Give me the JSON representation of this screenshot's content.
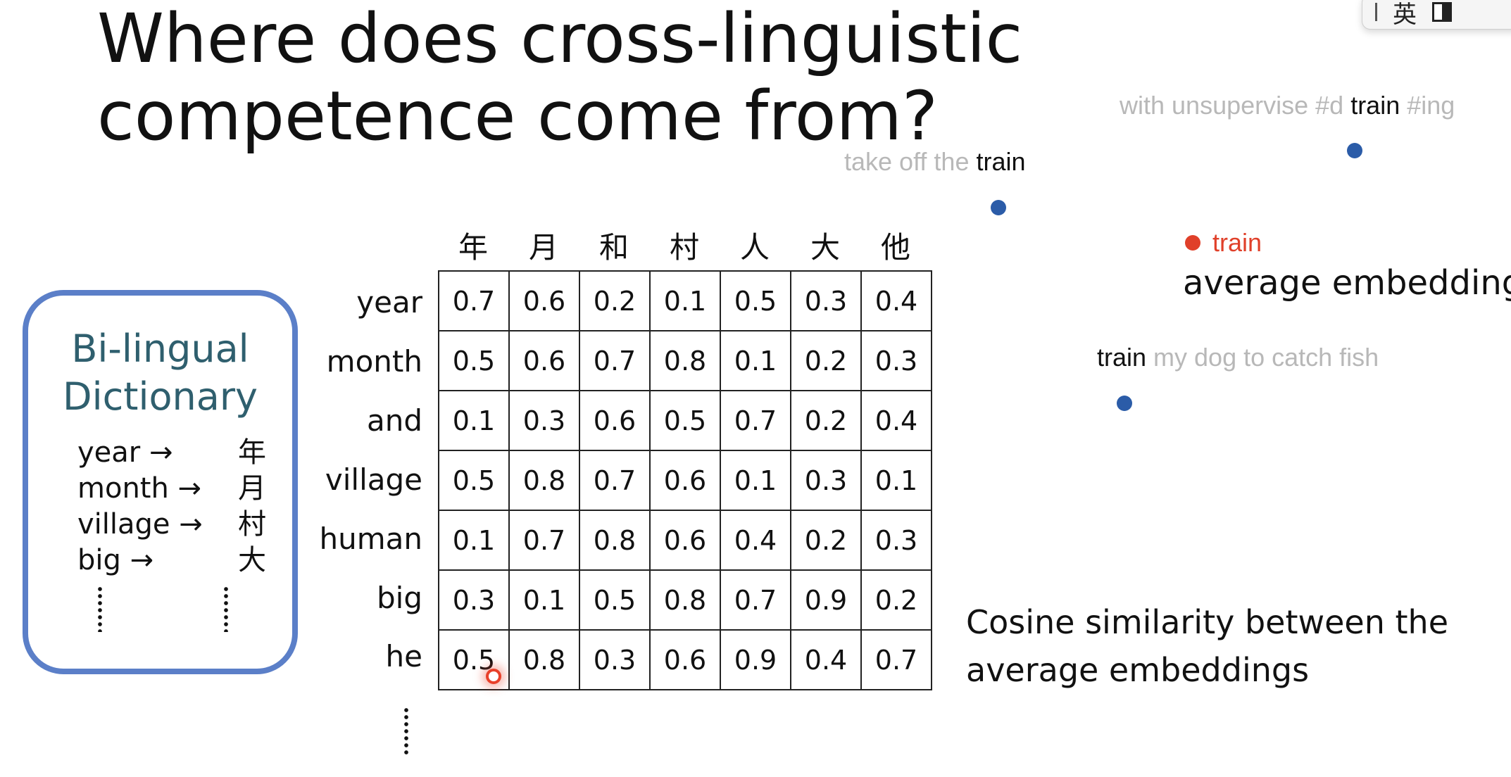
{
  "slide": {
    "title": "Where does cross-linguistic competence come from?"
  },
  "ime_toolbar": {
    "lang_label": "英"
  },
  "dictionary": {
    "title": "Bi-lingual Dictionary",
    "entries": [
      {
        "en": "year →",
        "zh": "年"
      },
      {
        "en": "month →",
        "zh": "月"
      },
      {
        "en": "village →",
        "zh": "村"
      },
      {
        "en": "big →",
        "zh": "大"
      }
    ]
  },
  "matrix": {
    "columns": [
      "年",
      "月",
      "和",
      "村",
      "人",
      "大",
      "他"
    ],
    "rows": [
      "year",
      "month",
      "and",
      "village",
      "human",
      "big",
      "he"
    ],
    "values": [
      [
        "0.7",
        "0.6",
        "0.2",
        "0.1",
        "0.5",
        "0.3",
        "0.4"
      ],
      [
        "0.5",
        "0.6",
        "0.7",
        "0.8",
        "0.1",
        "0.2",
        "0.3"
      ],
      [
        "0.1",
        "0.3",
        "0.6",
        "0.5",
        "0.7",
        "0.2",
        "0.4"
      ],
      [
        "0.5",
        "0.8",
        "0.7",
        "0.6",
        "0.1",
        "0.3",
        "0.1"
      ],
      [
        "0.1",
        "0.7",
        "0.8",
        "0.6",
        "0.4",
        "0.2",
        "0.3"
      ],
      [
        "0.3",
        "0.1",
        "0.5",
        "0.8",
        "0.7",
        "0.9",
        "0.2"
      ],
      [
        "0.5",
        "0.8",
        "0.3",
        "0.6",
        "0.9",
        "0.4",
        "0.7"
      ]
    ]
  },
  "caption": "Cosine similarity between the average embeddings",
  "embeddings": {
    "context1": {
      "pre": "with unsupervise #d ",
      "word": "train",
      "post": " #ing"
    },
    "context2": {
      "pre": "take off the ",
      "word": "train"
    },
    "context3": {
      "word": "train",
      "post": " my dog to catch fish"
    },
    "average_point_label": "train",
    "average_label": "average embeddings"
  },
  "colors": {
    "dict_border": "#5b7fc8",
    "dict_title": "#2f5f6e",
    "point_blue": "#2b5ca8",
    "point_red": "#e0402a"
  }
}
